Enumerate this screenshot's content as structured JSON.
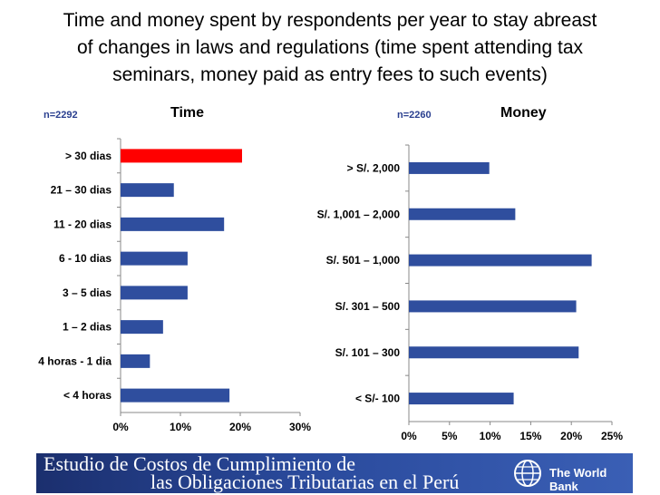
{
  "title": "Time and money spent by respondents per  year to stay abreast\nof changes in laws and regulations (time spent attending tax\nseminars, money paid as entry fees to such events)",
  "colors": {
    "bar": "#2f4e9e",
    "highlight": "#ff0000",
    "axis": "#888888",
    "n_label": "#2a3f8f"
  },
  "chart_data": [
    {
      "type": "bar",
      "orientation": "horizontal",
      "title": "Time",
      "n_label": "n=2292",
      "categories": [
        "> 30 dias",
        "21 – 30 dias",
        "11 - 20 dias",
        "6 - 10 dias",
        "3 – 5 dias",
        "1 – 2 dias",
        "4 horas - 1 dia",
        "< 4 horas"
      ],
      "values": [
        20.3,
        8.9,
        17.3,
        11.2,
        11.2,
        7.1,
        4.9,
        18.2
      ],
      "highlight_index": 0,
      "xlim": [
        0,
        30
      ],
      "ticks": [
        0,
        10,
        20,
        30
      ],
      "tick_labels": [
        "0%",
        "10%",
        "20%",
        "30%"
      ],
      "grid": false
    },
    {
      "type": "bar",
      "orientation": "horizontal",
      "title": "Money",
      "n_label": "n=2260",
      "categories": [
        "> S/. 2,000",
        "S/. 1,001 – 2,000",
        "S/. 501 – 1,000",
        "S/. 301 – 500",
        "S/. 101 – 300",
        "< S/- 100"
      ],
      "values": [
        9.9,
        13.1,
        22.5,
        20.6,
        20.9,
        12.9
      ],
      "xlim": [
        0,
        25
      ],
      "ticks": [
        0,
        5,
        10,
        15,
        20,
        25
      ],
      "tick_labels": [
        "0%",
        "5%",
        "10%",
        "15%",
        "20%",
        "25%"
      ],
      "grid": false
    }
  ],
  "banner": {
    "line1": "Estudio de Costos de Cumplimiento de",
    "line2": "las Obligaciones Tributarias en el Perú",
    "org": "The World Bank"
  }
}
